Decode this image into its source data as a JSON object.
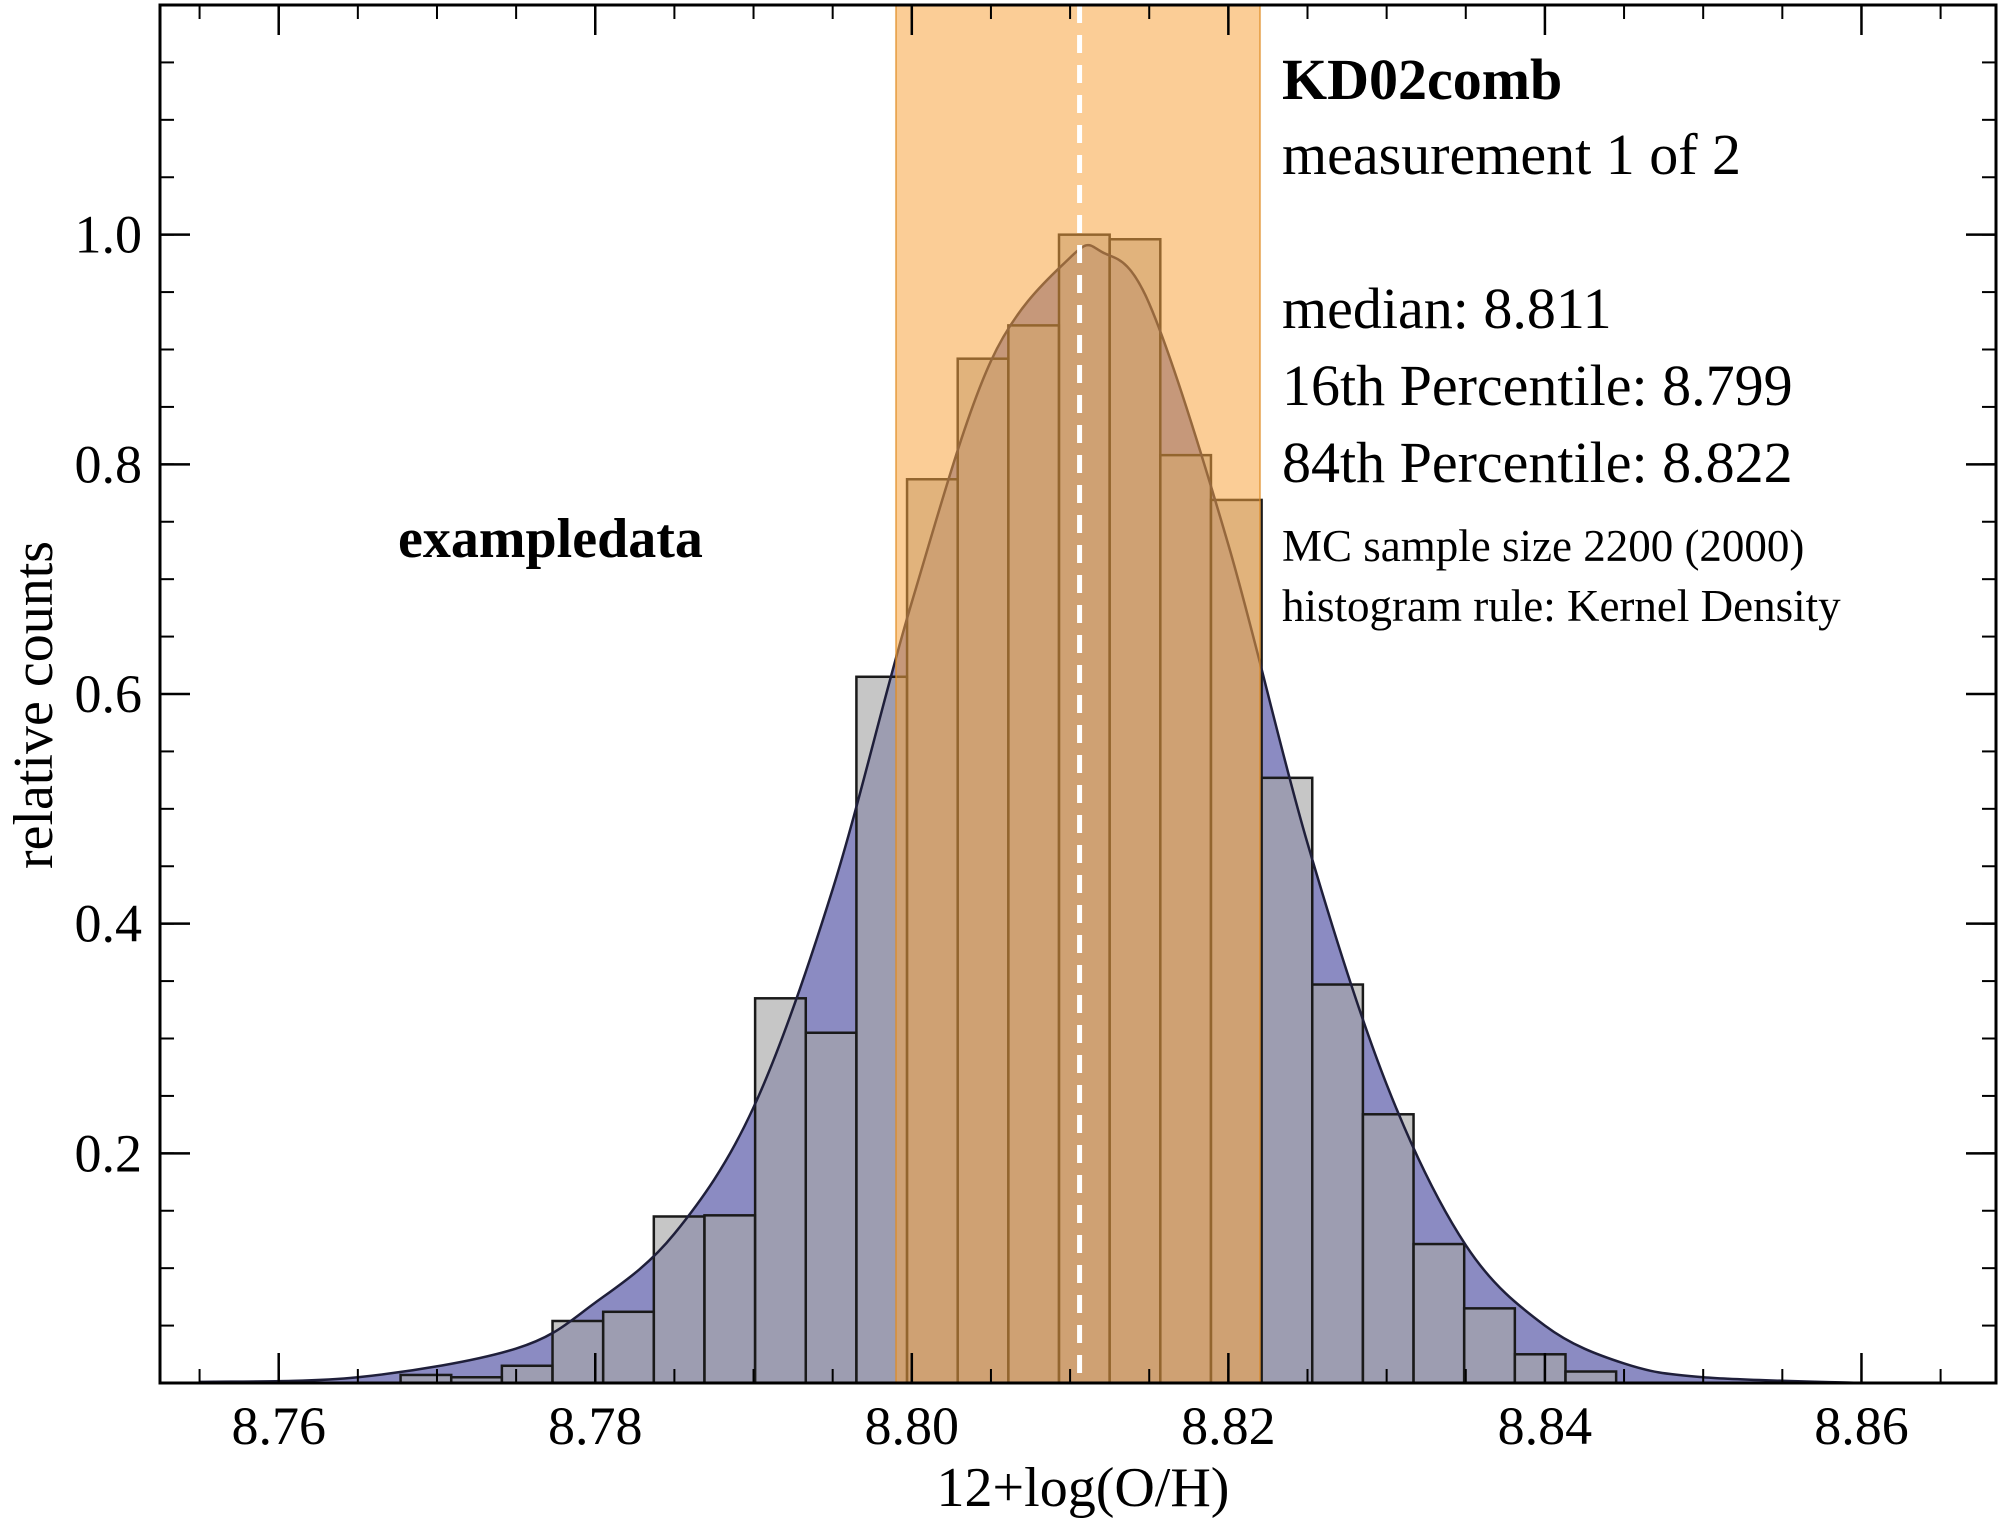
{
  "chart_data": {
    "type": "bar",
    "xlabel": "12+log(O/H)",
    "ylabel": "relative counts",
    "xlim": [
      8.7525,
      8.8685
    ],
    "ylim": [
      0.0,
      1.2
    ],
    "x_ticks": [
      8.76,
      8.78,
      8.8,
      8.82,
      8.84,
      8.86
    ],
    "x_tick_labels": [
      "8.76",
      "8.78",
      "8.80",
      "8.82",
      "8.84",
      "8.86"
    ],
    "y_ticks": [
      0.2,
      0.4,
      0.6,
      0.8,
      1.0
    ],
    "y_tick_labels": [
      "0.2",
      "0.4",
      "0.6",
      "0.8",
      "1.0"
    ],
    "series": [
      {
        "kind": "histogram",
        "bin_width": 0.0032,
        "bin_left_edges": [
          8.7677,
          8.7709,
          8.7741,
          8.7773,
          8.7805,
          8.7837,
          8.7869,
          8.7901,
          8.7933,
          8.7965,
          8.7997,
          8.8029,
          8.8061,
          8.8093,
          8.8125,
          8.8157,
          8.8189,
          8.8221,
          8.8253,
          8.8285,
          8.8317,
          8.8349,
          8.8381,
          8.8413
        ],
        "values": [
          0.007,
          0.005,
          0.015,
          0.054,
          0.062,
          0.145,
          0.146,
          0.335,
          0.305,
          0.615,
          0.787,
          0.892,
          0.921,
          1.0,
          0.996,
          0.808,
          0.769,
          0.527,
          0.347,
          0.234,
          0.121,
          0.065,
          0.025,
          0.01
        ],
        "color": "#a8a8a8"
      },
      {
        "kind": "kde",
        "x": [
          8.755,
          8.765,
          8.775,
          8.78,
          8.785,
          8.79,
          8.795,
          8.8,
          8.805,
          8.81,
          8.812,
          8.815,
          8.82,
          8.825,
          8.83,
          8.835,
          8.84,
          8.845,
          8.85,
          8.86
        ],
        "values": [
          0.001,
          0.005,
          0.03,
          0.07,
          0.13,
          0.24,
          0.43,
          0.68,
          0.89,
          0.98,
          0.985,
          0.94,
          0.73,
          0.47,
          0.26,
          0.12,
          0.05,
          0.017,
          0.005,
          0.0
        ],
        "color": "#5a5aa8"
      }
    ],
    "percentile_band": {
      "low": 8.799,
      "high": 8.822,
      "color": "#f7a440"
    },
    "median_line": {
      "x": 8.8106,
      "color": "#ffffff",
      "style": "dashed"
    },
    "annotations": {
      "method": "KD02comb",
      "measurement": "measurement 1 of 2",
      "median": "median: 8.811",
      "p16": "16th Percentile: 8.799",
      "p84": "84th Percentile: 8.822",
      "sample_size": "MC sample size 2200 (2000)",
      "hist_rule": "histogram rule: Kernel Density",
      "dataset": "exampledata"
    },
    "grid": false,
    "legend": "none"
  }
}
